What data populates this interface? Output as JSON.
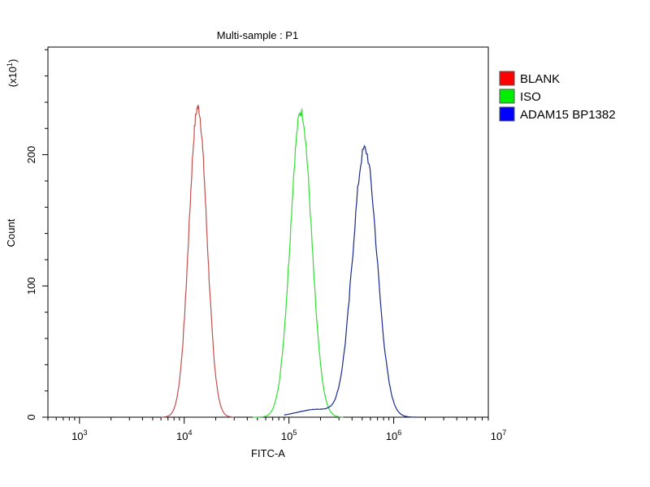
{
  "chart_data": {
    "type": "line",
    "title": "Multi-sample : P1",
    "xlabel": "FITC-A",
    "ylabel": "Count",
    "y_multiplier": "(x10",
    "y_multiplier_exp": "1",
    "y_multiplier_close": ")",
    "x_scale": "log",
    "xlim": [
      500,
      8000000
    ],
    "ylim": [
      0,
      282
    ],
    "x_ticks": [
      {
        "value": 1000,
        "base": "10",
        "exp": "3"
      },
      {
        "value": 10000,
        "base": "10",
        "exp": "4"
      },
      {
        "value": 100000,
        "base": "10",
        "exp": "5"
      },
      {
        "value": 1000000,
        "base": "10",
        "exp": "6"
      },
      {
        "value": 10000000,
        "base": "10",
        "exp": "7"
      }
    ],
    "y_ticks": [
      {
        "value": 0,
        "label": "0"
      },
      {
        "value": 100,
        "label": "100"
      },
      {
        "value": 200,
        "label": "200"
      }
    ],
    "grid": false,
    "legend": "right",
    "series": [
      {
        "name": "BLANK",
        "color": "#ff0000",
        "line_color": "#c0504d",
        "peak_x": 13500,
        "peak_y": 236,
        "spread_log": 0.085,
        "x_range": [
          6000,
          30000
        ]
      },
      {
        "name": "ISO",
        "color": "#00ee00",
        "line_color": "#33dd33",
        "peak_x": 130000,
        "peak_y": 233,
        "spread_log": 0.1,
        "x_range": [
          45000,
          330000
        ]
      },
      {
        "name": "ADAM15 BP1382",
        "color": "#0000ff",
        "line_color": "#1a2a8c",
        "peak_x": 530000,
        "peak_y": 204,
        "spread_log": 0.115,
        "x_range": [
          90000,
          1700000
        ]
      }
    ]
  }
}
